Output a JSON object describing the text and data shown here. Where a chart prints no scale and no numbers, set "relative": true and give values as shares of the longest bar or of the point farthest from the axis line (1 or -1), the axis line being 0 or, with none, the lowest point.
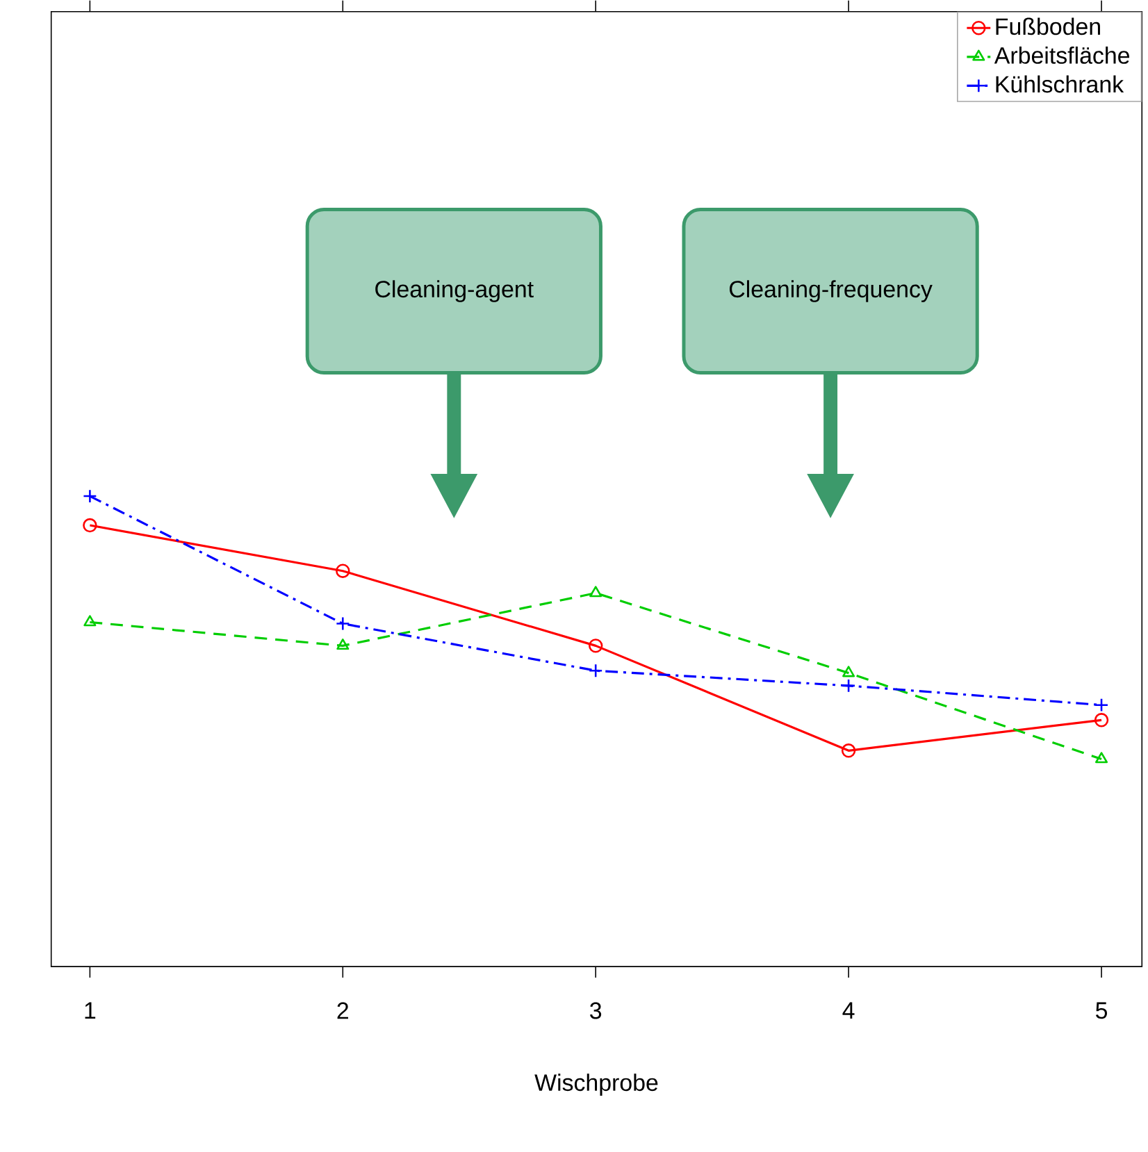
{
  "chart_data": {
    "type": "line",
    "relative": true,
    "xlabel": "Wischprobe",
    "categories": [
      "1",
      "2",
      "3",
      "4",
      "5"
    ],
    "series": [
      {
        "name": "Fußboden",
        "color": "#ff0000",
        "marker": "circle",
        "line_style": "solid",
        "values": [
          0.938,
          0.841,
          0.682,
          0.459,
          0.524
        ]
      },
      {
        "name": "Arbeitsfläche",
        "color": "#00cd00",
        "marker": "triangle",
        "line_style": "dashed",
        "values": [
          0.732,
          0.682,
          0.794,
          0.624,
          0.441
        ]
      },
      {
        "name": "Kühlschrank",
        "color": "#0000ff",
        "marker": "cross",
        "line_style": "dashdot",
        "values": [
          1,
          0.729,
          0.629,
          0.597,
          0.556
        ]
      }
    ],
    "legend": "top right",
    "annotations": [
      "Cleaning-agent",
      "Cleaning-frequency"
    ]
  }
}
